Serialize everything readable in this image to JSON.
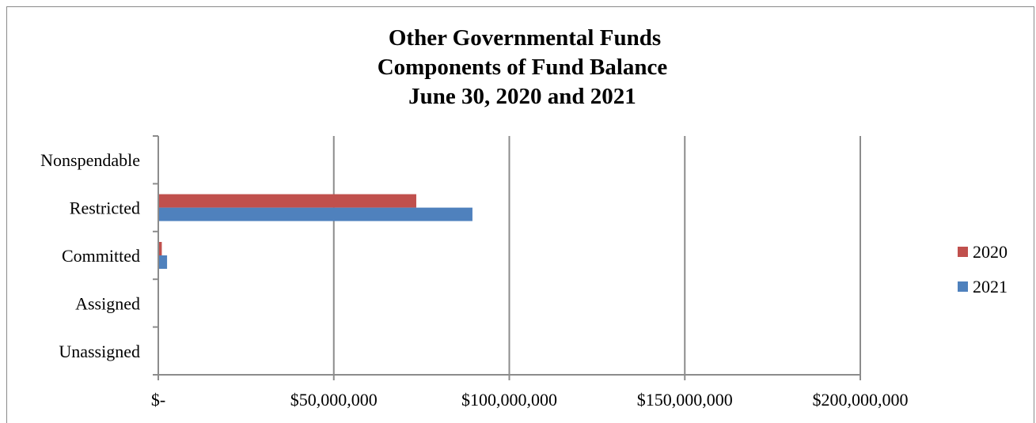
{
  "chart_data": {
    "type": "bar",
    "orientation": "horizontal",
    "title_lines": [
      "Other Governmental Funds",
      "Components of Fund Balance",
      "June 30, 2020 and 2021"
    ],
    "categories": [
      "Nonspendable",
      "Restricted",
      "Committed",
      "Assigned",
      "Unassigned"
    ],
    "series": [
      {
        "name": "2020",
        "color": "#c0504d",
        "values": [
          0,
          73500000,
          1000000,
          0,
          0
        ]
      },
      {
        "name": "2021",
        "color": "#4f81bd",
        "values": [
          0,
          89500000,
          2500000,
          0,
          0
        ]
      }
    ],
    "x_ticks": [
      0,
      50000000,
      100000000,
      150000000,
      200000000
    ],
    "x_tick_labels": [
      "$-",
      "$50,000,000",
      "$100,000,000",
      "$150,000,000",
      "$200,000,000"
    ],
    "xlim": [
      0,
      200000000
    ],
    "grid": true,
    "legend_position": "right"
  }
}
